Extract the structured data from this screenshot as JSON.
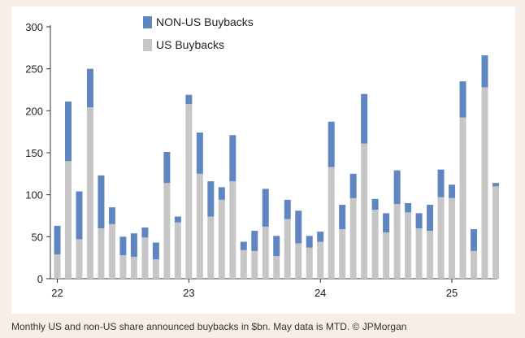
{
  "caption": "Monthly US and non-US share announced buybacks in $bn. May data is MTD. © JPMorgan",
  "colors": {
    "non_us": "#5f86c0",
    "us": "#c6c6c6",
    "axis": "#333333",
    "background": "#ffffff"
  },
  "chart_data": {
    "type": "bar",
    "stacked": true,
    "title": "",
    "xlabel": "",
    "ylabel": "",
    "ylim": [
      0,
      300
    ],
    "yticks": [
      0,
      50,
      100,
      150,
      200,
      250,
      300
    ],
    "xtick_labels": [
      {
        "label": "22",
        "index": 0
      },
      {
        "label": "23",
        "index": 12
      },
      {
        "label": "24",
        "index": 24
      },
      {
        "label": "25",
        "index": 36
      }
    ],
    "legend": {
      "placement": "top-center",
      "entries": [
        "NON-US Buybacks",
        "US Buybacks"
      ]
    },
    "grid": false,
    "categories": [
      "Jan-22",
      "Feb-22",
      "Mar-22",
      "Apr-22",
      "May-22",
      "Jun-22",
      "Jul-22",
      "Aug-22",
      "Sep-22",
      "Oct-22",
      "Nov-22",
      "Dec-22",
      "Jan-23",
      "Feb-23",
      "Mar-23",
      "Apr-23",
      "May-23",
      "Jun-23",
      "Jul-23",
      "Aug-23",
      "Sep-23",
      "Oct-23",
      "Nov-23",
      "Dec-23",
      "Jan-24",
      "Feb-24",
      "Mar-24",
      "Apr-24",
      "May-24",
      "Jun-24",
      "Jul-24",
      "Aug-24",
      "Sep-24",
      "Oct-24",
      "Nov-24",
      "Dec-24",
      "Jan-25",
      "Feb-25",
      "Mar-25",
      "Apr-25",
      "May-25"
    ],
    "series": [
      {
        "name": "US Buybacks",
        "values": [
          29,
          140,
          47,
          204,
          60,
          65,
          28,
          26,
          49,
          23,
          114,
          67,
          208,
          125,
          74,
          94,
          116,
          34,
          33,
          62,
          27,
          71,
          42,
          37,
          44,
          133,
          59,
          96,
          161,
          82,
          55,
          89,
          79,
          60,
          57,
          97,
          96,
          192,
          33,
          228,
          110
        ]
      },
      {
        "name": "NON-US Buybacks",
        "values": [
          34,
          71,
          57,
          46,
          63,
          20,
          22,
          28,
          12,
          20,
          37,
          7,
          11,
          49,
          42,
          15,
          55,
          10,
          24,
          45,
          24,
          23,
          39,
          14,
          12,
          54,
          29,
          29,
          59,
          13,
          23,
          40,
          11,
          18,
          31,
          33,
          16,
          43,
          26,
          38,
          4
        ]
      }
    ]
  }
}
